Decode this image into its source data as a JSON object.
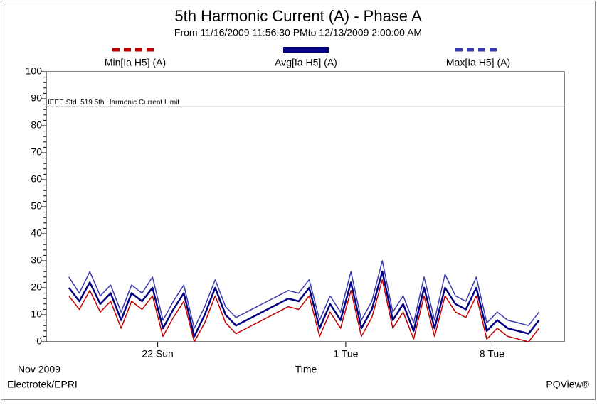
{
  "chart_data": {
    "type": "line",
    "title": "5th Harmonic Current (A) - Phase A",
    "subtitle": "From 11/16/2009 11:56:30 PMto 12/13/2009 2:00:00 AM",
    "x_label": "Time",
    "x_period_label": "Nov 2009",
    "footer_left": "Electrotek/EPRI",
    "footer_right": "PQView®",
    "limit_line": {
      "value": 87,
      "label": "IEEE Std. 519 5th Harmonic Current Limit"
    },
    "x": [
      "2009-11-17T18:00",
      "2009-11-18T06:00",
      "2009-11-18T18:00",
      "2009-11-19T06:00",
      "2009-11-19T18:00",
      "2009-11-20T06:00",
      "2009-11-20T18:00",
      "2009-11-21T06:00",
      "2009-11-21T18:00",
      "2009-11-22T06:00",
      "2009-11-22T18:00",
      "2009-11-23T06:00",
      "2009-11-23T18:00",
      "2009-11-24T06:00",
      "2009-11-24T18:00",
      "2009-11-25T06:00",
      "2009-11-25T18:00",
      "2009-11-26T06:00",
      "2009-11-26T18:00",
      "2009-11-27T06:00",
      "2009-11-27T18:00",
      "2009-11-28T06:00",
      "2009-11-28T18:00",
      "2009-11-29T06:00",
      "2009-11-29T18:00",
      "2009-11-30T06:00",
      "2009-11-30T18:00",
      "2009-12-01T06:00",
      "2009-12-01T18:00",
      "2009-12-02T06:00",
      "2009-12-02T18:00",
      "2009-12-03T06:00",
      "2009-12-03T18:00",
      "2009-12-04T06:00",
      "2009-12-04T18:00",
      "2009-12-05T06:00",
      "2009-12-05T18:00",
      "2009-12-06T06:00",
      "2009-12-06T18:00",
      "2009-12-07T06:00",
      "2009-12-07T18:00",
      "2009-12-08T06:00",
      "2009-12-08T18:00",
      "2009-12-09T06:00",
      "2009-12-09T18:00",
      "2009-12-10T06:00"
    ],
    "xlim": [
      "2009-11-16T16:00",
      "2009-12-11T11:00"
    ],
    "xticks": [
      {
        "value": "2009-11-22T00:00",
        "label": "22 Sun"
      },
      {
        "value": "2009-12-01T00:00",
        "label": "1 Tue"
      },
      {
        "value": "2009-12-08T00:00",
        "label": "8 Tue"
      }
    ],
    "ylim": [
      0,
      100
    ],
    "yticks": [
      0,
      10,
      20,
      30,
      40,
      50,
      60,
      70,
      80,
      90,
      100
    ],
    "series": [
      {
        "name": "Max[Ia H5] (A)",
        "color": "#3b3bb0",
        "dashed": true,
        "values": [
          24,
          18,
          26,
          17,
          21,
          11,
          21,
          18,
          24,
          8,
          15,
          21,
          5,
          13,
          23,
          13,
          9,
          11,
          13,
          15,
          17,
          19,
          18,
          23,
          8,
          17,
          11,
          26,
          8,
          15,
          30,
          11,
          17,
          7,
          24,
          8,
          25,
          17,
          15,
          24,
          7,
          11,
          8,
          7,
          6,
          11
        ]
      },
      {
        "name": "Min[Ia H5] (A)",
        "color": "#c00000",
        "dashed": true,
        "values": [
          17,
          12,
          19,
          11,
          15,
          5,
          15,
          12,
          17,
          2,
          9,
          15,
          0,
          7,
          17,
          7,
          3,
          5,
          7,
          9,
          11,
          13,
          12,
          17,
          2,
          11,
          5,
          19,
          2,
          9,
          23,
          5,
          11,
          1,
          17,
          2,
          17,
          11,
          9,
          17,
          1,
          5,
          2,
          1,
          0,
          5
        ]
      },
      {
        "name": "Avg[Ia H5] (A)",
        "color": "#000080",
        "dashed": false,
        "values": [
          20,
          15,
          22,
          14,
          18,
          8,
          18,
          15,
          20,
          5,
          12,
          18,
          2,
          10,
          20,
          10,
          6,
          8,
          10,
          12,
          14,
          16,
          15,
          20,
          5,
          14,
          8,
          22,
          5,
          12,
          26,
          8,
          14,
          4,
          20,
          5,
          20,
          14,
          12,
          20,
          4,
          8,
          5,
          4,
          3,
          8
        ]
      }
    ],
    "legend": "top"
  }
}
